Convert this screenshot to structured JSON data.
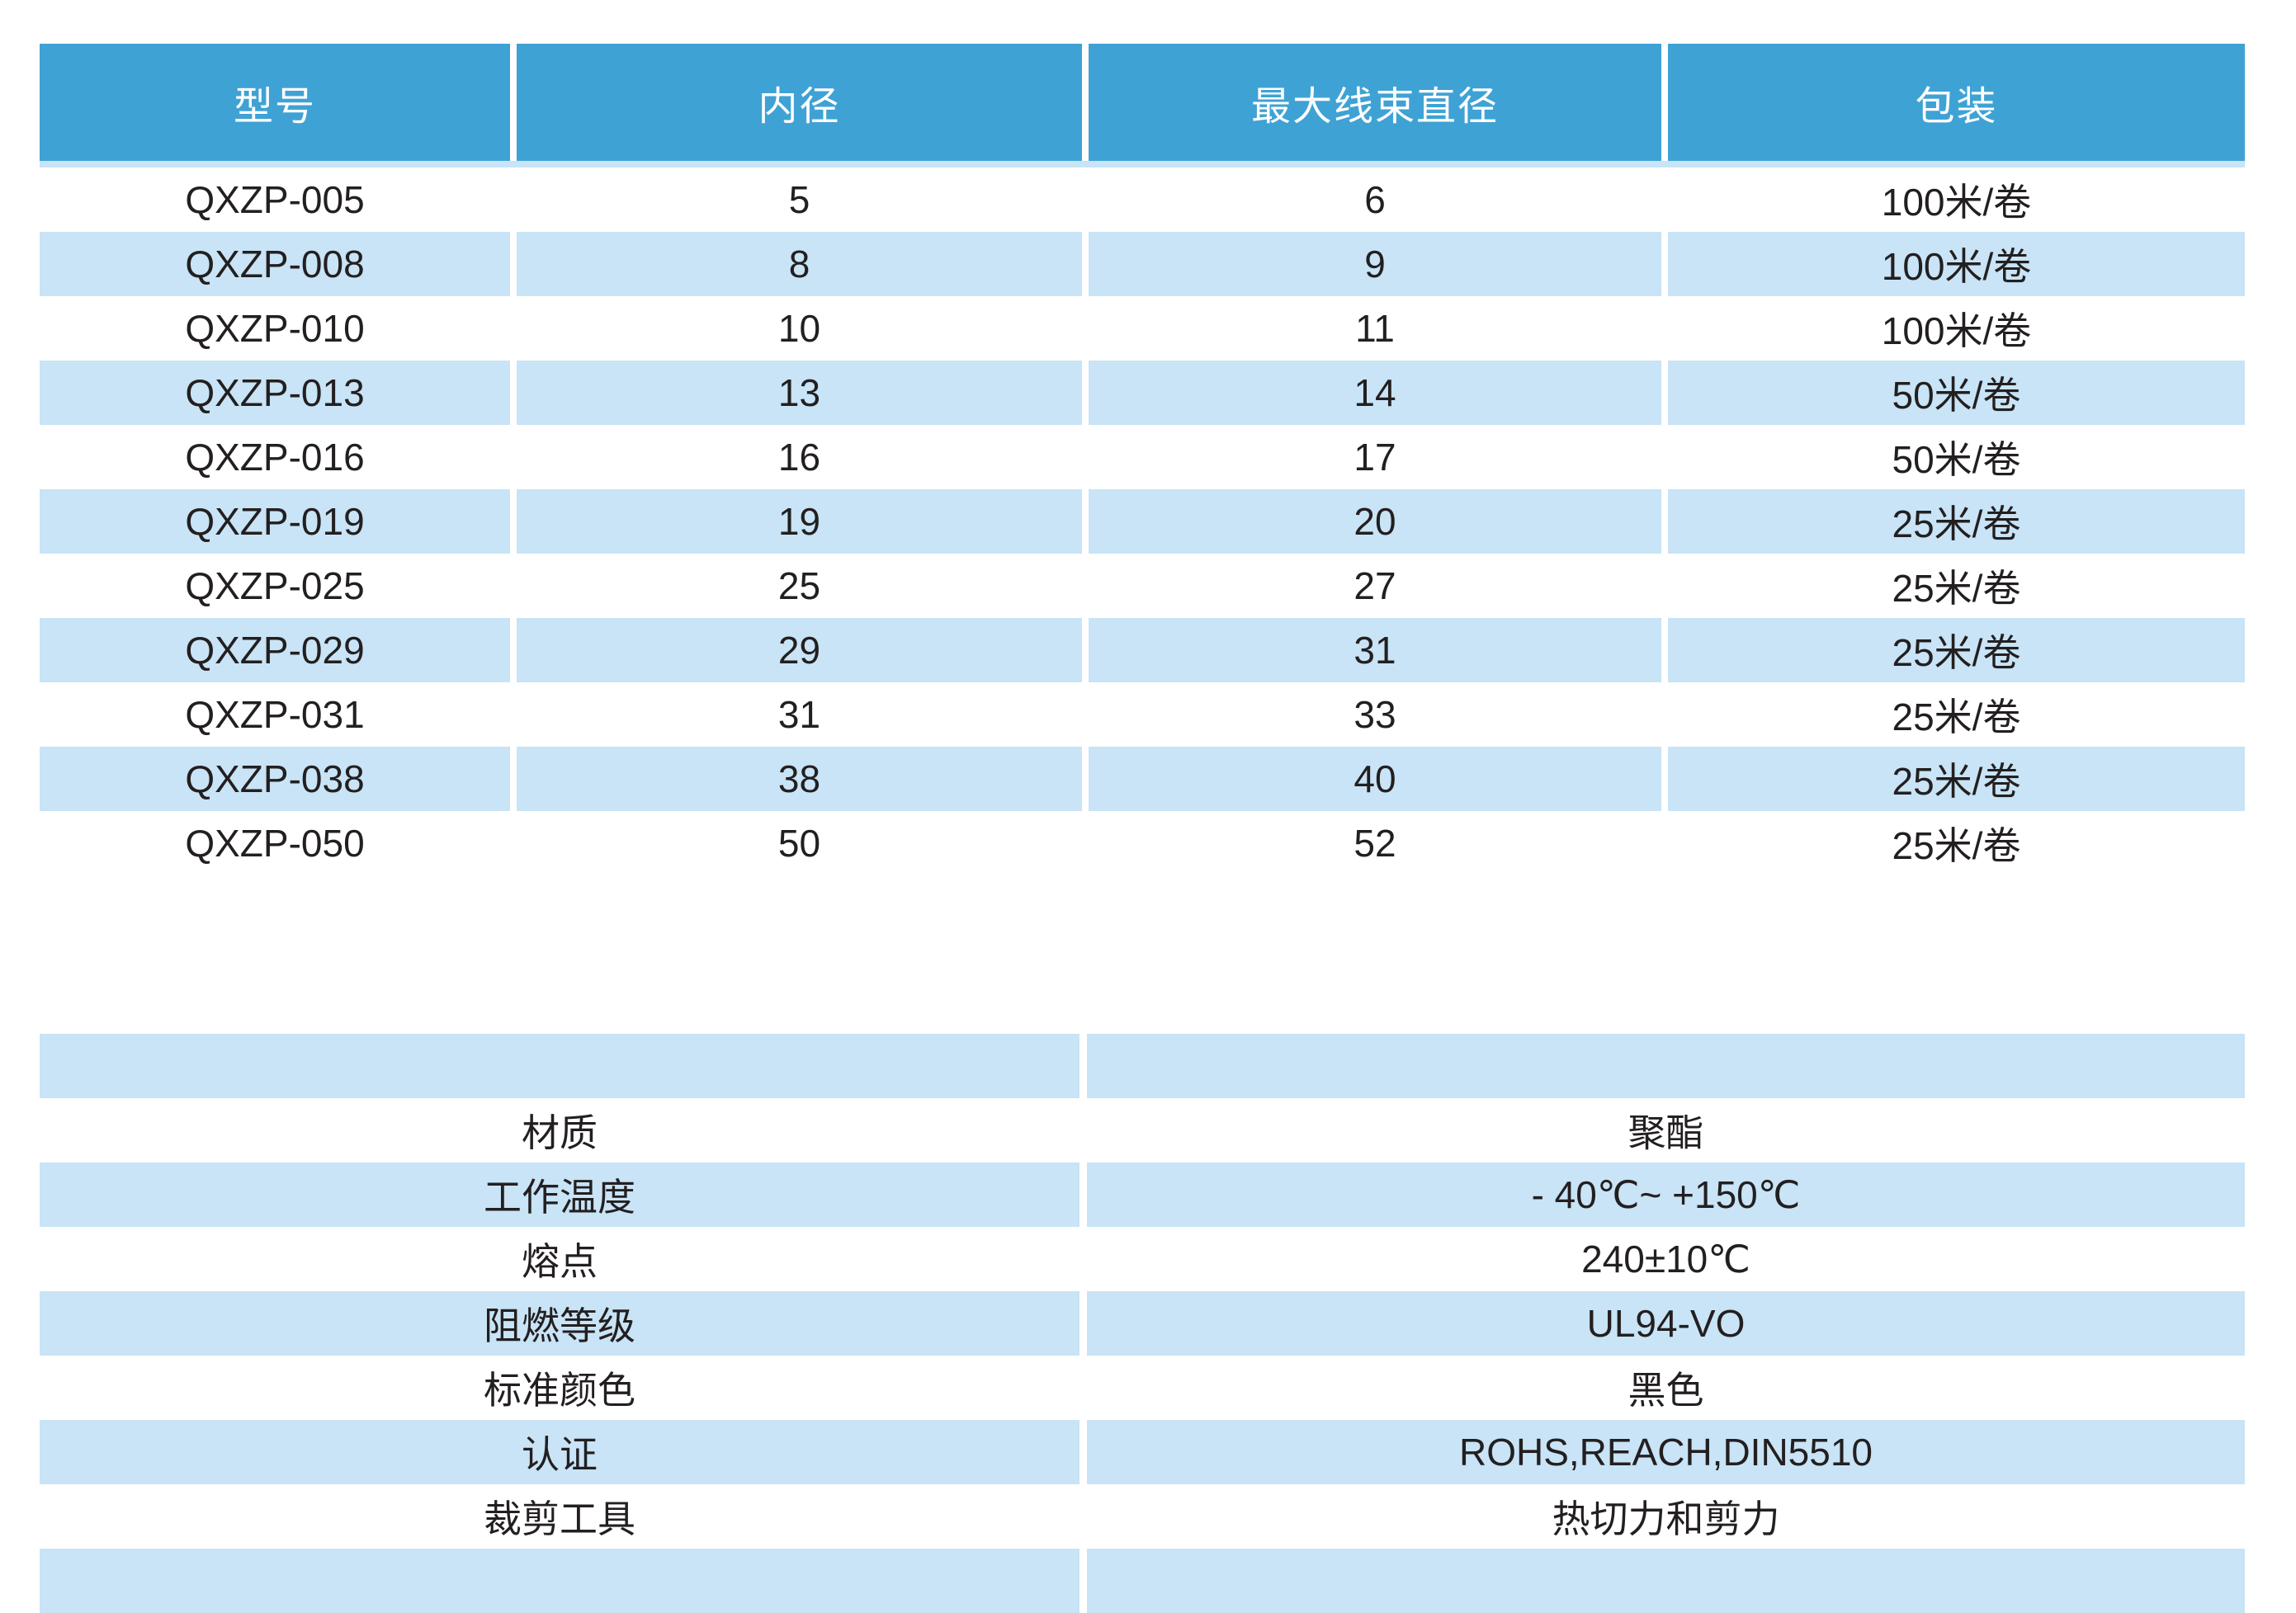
{
  "colors": {
    "header_bg": "#3FA2D5",
    "header_text": "#FFFFFF",
    "stripe_bg": "#C8E4F6",
    "body_text": "#231F20"
  },
  "spec_table": {
    "columns": [
      "型号",
      "内径",
      "最大线束直径",
      "包装"
    ],
    "rows": [
      [
        "QXZP-005",
        "5",
        "6",
        "100米/卷"
      ],
      [
        "QXZP-008",
        "8",
        "9",
        "100米/卷"
      ],
      [
        "QXZP-010",
        "10",
        "11",
        "100米/卷"
      ],
      [
        "QXZP-013",
        "13",
        "14",
        "50米/卷"
      ],
      [
        "QXZP-016",
        "16",
        "17",
        "50米/卷"
      ],
      [
        "QXZP-019",
        "19",
        "20",
        "25米/卷"
      ],
      [
        "QXZP-025",
        "25",
        "27",
        "25米/卷"
      ],
      [
        "QXZP-029",
        "29",
        "31",
        "25米/卷"
      ],
      [
        "QXZP-031",
        "31",
        "33",
        "25米/卷"
      ],
      [
        "QXZP-038",
        "38",
        "40",
        "25米/卷"
      ],
      [
        "QXZP-050",
        "50",
        "52",
        "25米/卷"
      ]
    ]
  },
  "property_table": {
    "rows": [
      {
        "label": "",
        "value": ""
      },
      {
        "label": "材质",
        "value": "聚酯"
      },
      {
        "label": "工作温度",
        "value": "- 40℃~ +150℃"
      },
      {
        "label": "熔点",
        "value": "240±10℃"
      },
      {
        "label": "阻燃等级",
        "value": "UL94-VO"
      },
      {
        "label": "标准颜色",
        "value": "黑色"
      },
      {
        "label": "认证",
        "value": "ROHS,REACH,DIN5510"
      },
      {
        "label": "裁剪工具",
        "value": "热切力和剪力"
      },
      {
        "label": "",
        "value": ""
      }
    ]
  }
}
